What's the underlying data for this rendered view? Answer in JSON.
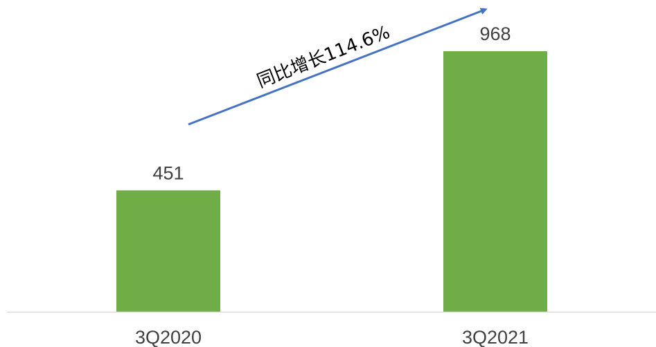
{
  "chart_data": {
    "type": "bar",
    "categories": [
      "3Q2020",
      "3Q2021"
    ],
    "values": [
      451,
      968
    ],
    "data_labels": [
      "451",
      "968"
    ],
    "title": "",
    "xlabel": "",
    "ylabel": "",
    "ylim": [
      0,
      1130
    ],
    "grid": false,
    "legend": "none",
    "bar_color": "#70AD47",
    "axis_color": "#D9D9D9",
    "annotation": {
      "text": "同比增长114.6%",
      "arrow_color": "#4472C4"
    }
  }
}
